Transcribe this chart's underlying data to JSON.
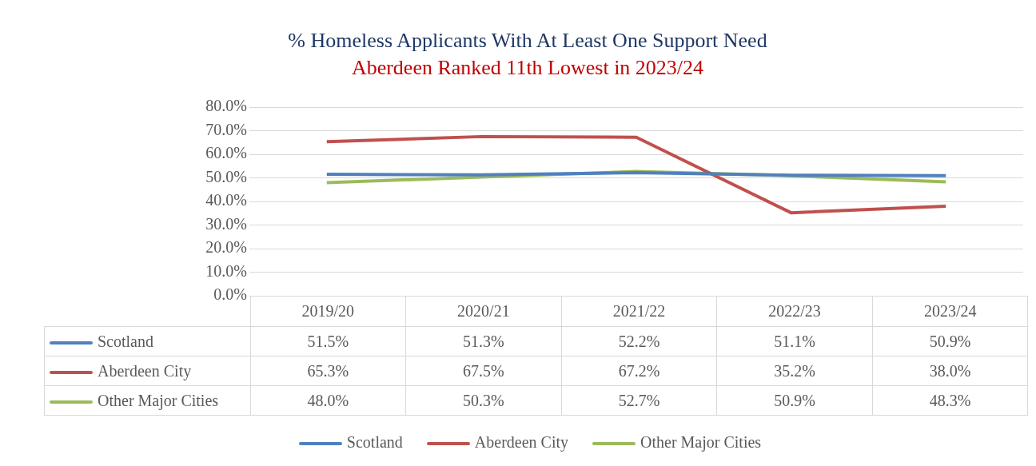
{
  "chart_data": {
    "type": "line",
    "title": "% Homeless Applicants With At Least One Support Need",
    "subtitle": "Aberdeen Ranked 11th Lowest in 2023/24",
    "categories": [
      "2019/20",
      "2020/21",
      "2021/22",
      "2022/23",
      "2023/24"
    ],
    "series": [
      {
        "name": "Scotland",
        "color": "#4f81bd",
        "values": [
          51.5,
          51.3,
          52.2,
          51.1,
          50.9
        ],
        "value_labels": [
          "51.5%",
          "51.3%",
          "52.2%",
          "51.1%",
          "50.9%"
        ]
      },
      {
        "name": "Aberdeen City",
        "color": "#c0504d",
        "values": [
          65.3,
          67.5,
          67.2,
          35.2,
          38.0
        ],
        "value_labels": [
          "65.3%",
          "67.5%",
          "67.2%",
          "35.2%",
          "38.0%"
        ]
      },
      {
        "name": "Other Major Cities",
        "color": "#9bbb59",
        "values": [
          48.0,
          50.3,
          52.7,
          50.9,
          48.3
        ],
        "value_labels": [
          "48.0%",
          "50.3%",
          "52.7%",
          "50.9%",
          "48.3%"
        ]
      }
    ],
    "ylim": [
      0,
      80
    ],
    "yticks": [
      {
        "value": 0,
        "label": "0.0%"
      },
      {
        "value": 10,
        "label": "10.0%"
      },
      {
        "value": 20,
        "label": "20.0%"
      },
      {
        "value": 30,
        "label": "30.0%"
      },
      {
        "value": 40,
        "label": "40.0%"
      },
      {
        "value": 50,
        "label": "50.0%"
      },
      {
        "value": 60,
        "label": "60.0%"
      },
      {
        "value": 70,
        "label": "70.0%"
      },
      {
        "value": 80,
        "label": "80.0%"
      }
    ],
    "grid": "y",
    "legend": "bottom",
    "marker": "none",
    "line_style": "solid"
  }
}
